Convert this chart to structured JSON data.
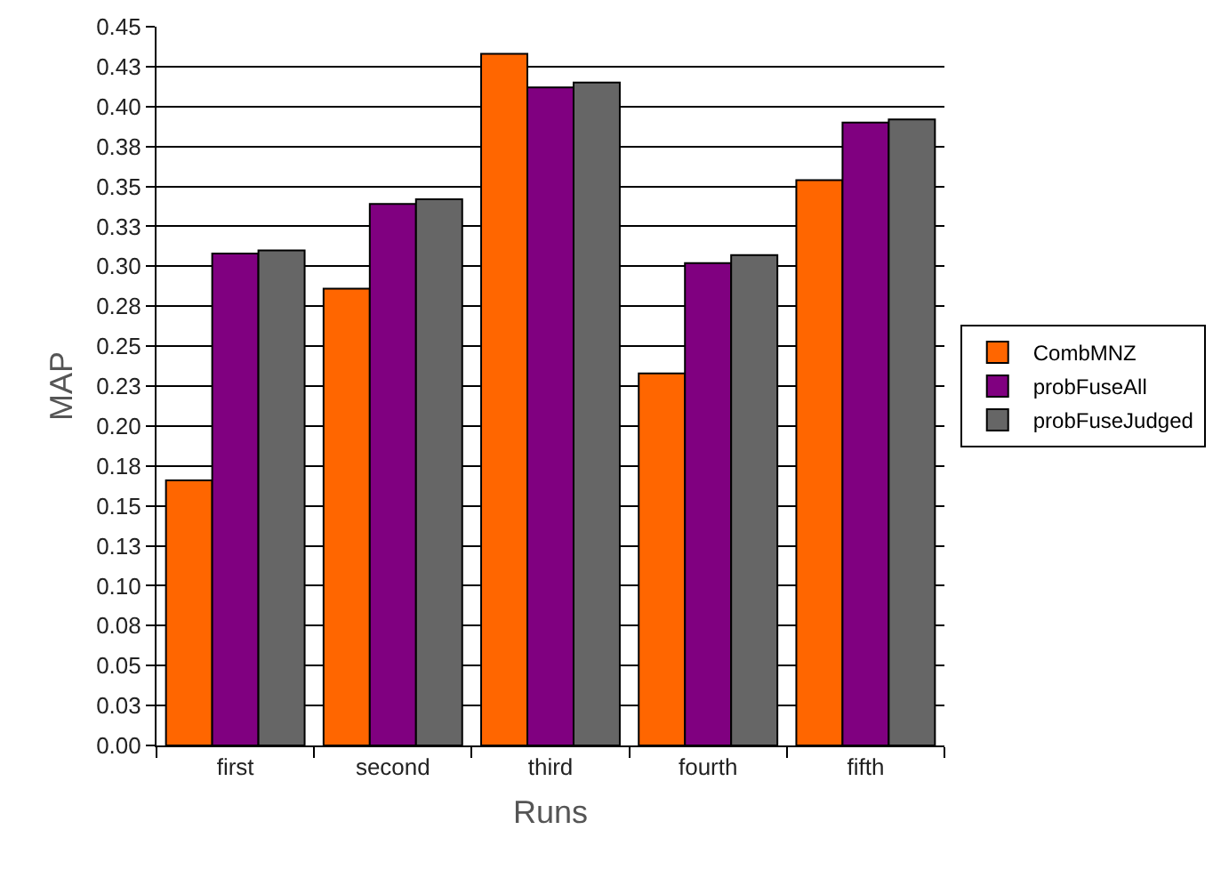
{
  "chart_data": {
    "type": "bar",
    "xlabel": "Runs",
    "ylabel": "MAP",
    "categories": [
      "first",
      "second",
      "third",
      "fourth",
      "fifth"
    ],
    "series": [
      {
        "name": "CombMNZ",
        "color": "#ff6600",
        "values": [
          0.166,
          0.286,
          0.433,
          0.233,
          0.354
        ]
      },
      {
        "name": "probFuseAll",
        "color": "#800080",
        "values": [
          0.308,
          0.339,
          0.412,
          0.302,
          0.39
        ]
      },
      {
        "name": "probFuseJudged",
        "color": "#666666",
        "values": [
          0.31,
          0.342,
          0.415,
          0.307,
          0.392
        ]
      }
    ],
    "ylim": [
      0,
      0.45
    ],
    "yticks": [
      {
        "value": 0,
        "label": "0.00"
      },
      {
        "value": 0.025,
        "label": "0.03"
      },
      {
        "value": 0.05,
        "label": "0.05"
      },
      {
        "value": 0.075,
        "label": "0.08"
      },
      {
        "value": 0.1,
        "label": "0.10"
      },
      {
        "value": 0.125,
        "label": "0.13"
      },
      {
        "value": 0.15,
        "label": "0.15"
      },
      {
        "value": 0.175,
        "label": "0.18"
      },
      {
        "value": 0.2,
        "label": "0.20"
      },
      {
        "value": 0.225,
        "label": "0.23"
      },
      {
        "value": 0.25,
        "label": "0.25"
      },
      {
        "value": 0.275,
        "label": "0.28"
      },
      {
        "value": 0.3,
        "label": "0.30"
      },
      {
        "value": 0.325,
        "label": "0.33"
      },
      {
        "value": 0.35,
        "label": "0.35"
      },
      {
        "value": 0.375,
        "label": "0.38"
      },
      {
        "value": 0.4,
        "label": "0.40"
      },
      {
        "value": 0.425,
        "label": "0.43"
      },
      {
        "value": 0.45,
        "label": "0.45"
      }
    ],
    "grid": "y",
    "legend": "right"
  }
}
